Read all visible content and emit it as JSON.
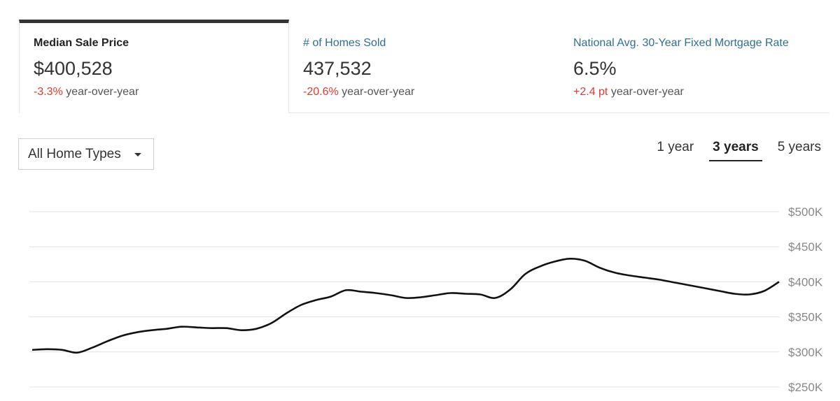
{
  "stats": [
    {
      "label": "Median Sale Price",
      "value": "$400,528",
      "change": "-3.3%",
      "change_suffix": "year-over-year",
      "active": true
    },
    {
      "label": "# of Homes Sold",
      "value": "437,532",
      "change": "-20.6%",
      "change_suffix": "year-over-year",
      "active": false
    },
    {
      "label": "National Avg. 30-Year Fixed Mortgage Rate",
      "value": "6.5%",
      "change": "+2.4 pt",
      "change_suffix": "year-over-year",
      "active": false
    }
  ],
  "filter": {
    "selected": "All Home Types"
  },
  "ranges": [
    {
      "label": "1 year",
      "active": false
    },
    {
      "label": "3 years",
      "active": true
    },
    {
      "label": "5 years",
      "active": false
    }
  ],
  "colors": {
    "accent_negative": "#e2392e",
    "link": "#2e6f91",
    "line": "#111111"
  },
  "chart_data": {
    "type": "line",
    "title": "",
    "xlabel": "",
    "ylabel": "",
    "ylim": [
      250000,
      500000
    ],
    "yticks": [
      {
        "value": 500000,
        "label": "$500K"
      },
      {
        "value": 450000,
        "label": "$450K"
      },
      {
        "value": 400000,
        "label": "$400K"
      },
      {
        "value": 350000,
        "label": "$350K"
      },
      {
        "value": 300000,
        "label": "$300K"
      },
      {
        "value": 250000,
        "label": "$250K"
      }
    ],
    "grid": true,
    "series": [
      {
        "values": [
          303000,
          304000,
          303000,
          299000,
          306000,
          315000,
          323000,
          328000,
          331000,
          333000,
          336000,
          335000,
          334000,
          334000,
          331000,
          333000,
          341000,
          355000,
          367000,
          374000,
          379000,
          388000,
          386000,
          384000,
          381000,
          377000,
          378000,
          381000,
          384000,
          383000,
          382000,
          377000,
          389000,
          411000,
          422000,
          429000,
          433000,
          430000,
          420000,
          413000,
          409000,
          406000,
          403000,
          399000,
          395000,
          391000,
          387000,
          383000,
          382000,
          387000,
          400000
        ]
      }
    ]
  }
}
